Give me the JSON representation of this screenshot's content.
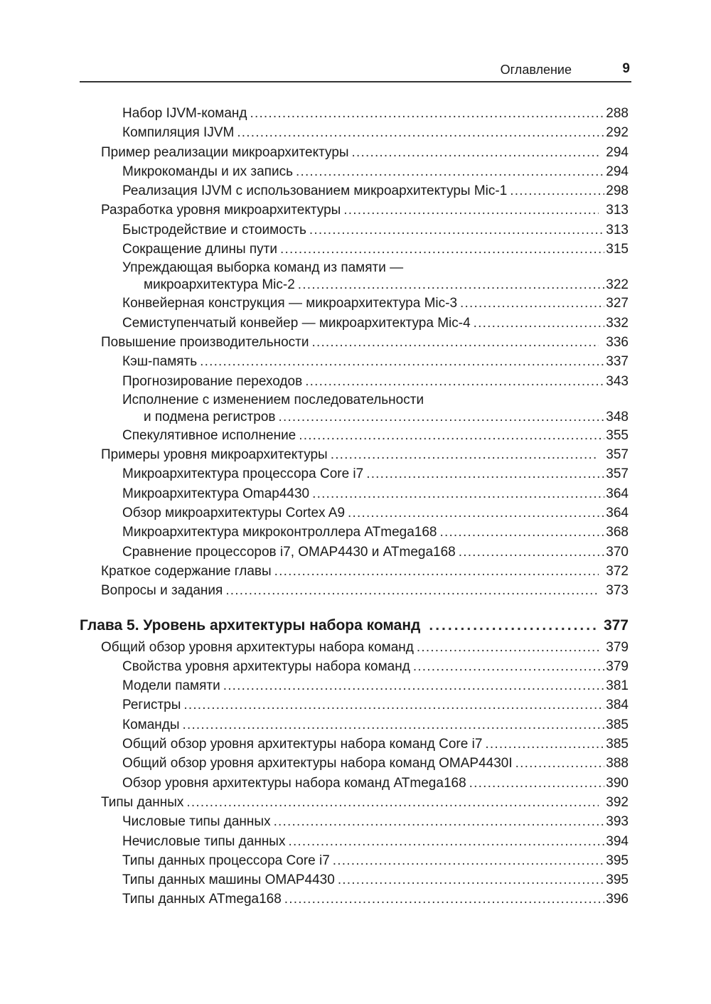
{
  "header": {
    "title": "Оглавление",
    "page_number": "9"
  },
  "entries": [
    {
      "level": 2,
      "text": "Набор IJVM-команд",
      "page": "288"
    },
    {
      "level": 2,
      "text": "Компиляция IJVM",
      "page": "292"
    },
    {
      "level": 1,
      "text": "Пример реализации микроархитектуры",
      "page": "294"
    },
    {
      "level": 2,
      "text": "Микрокоманды и их запись",
      "page": "294"
    },
    {
      "level": 2,
      "text": "Реализация IJVM с использованием микроархитектуры Mic-1",
      "page": "298"
    },
    {
      "level": 1,
      "text": "Разработка уровня микроархитектуры",
      "page": "313"
    },
    {
      "level": 2,
      "text": "Быстродействие и стоимость",
      "page": "313"
    },
    {
      "level": 2,
      "text": "Сокращение длины пути",
      "page": "315"
    },
    {
      "level": 2,
      "text": "Упреждающая выборка команд из памяти —",
      "cont": "микроархитектура Mic-2",
      "page": "322"
    },
    {
      "level": 2,
      "text": "Конвейерная конструкция — микроархитектура Mic-3",
      "page": "327"
    },
    {
      "level": 2,
      "text": "Семиступенчатый конвейер — микроархитектура Mic-4",
      "page": "332"
    },
    {
      "level": 1,
      "text": "Повышение производительности",
      "page": "336"
    },
    {
      "level": 2,
      "text": "Кэш-память",
      "page": "337"
    },
    {
      "level": 2,
      "text": "Прогнозирование переходов",
      "page": "343"
    },
    {
      "level": 2,
      "text": "Исполнение с изменением последовательности",
      "cont": "и подмена регистров",
      "page": "348"
    },
    {
      "level": 2,
      "text": "Спекулятивное исполнение",
      "page": "355"
    },
    {
      "level": 1,
      "text": "Примеры уровня микроархитектуры",
      "page": "357"
    },
    {
      "level": 2,
      "text": "Микроархитектура процессора Core i7",
      "page": "357"
    },
    {
      "level": 2,
      "text": "Микроархитектура Omap4430",
      "page": "364"
    },
    {
      "level": 2,
      "text": "Обзор микроархитектуры Cortex A9",
      "page": "364"
    },
    {
      "level": 2,
      "text": "Микроархитектура микроконтроллера ATmega168",
      "page": "368"
    },
    {
      "level": 2,
      "text": "Сравнение процессоров i7, OMAP4430 и ATmega168",
      "page": "370"
    },
    {
      "level": 1,
      "text": "Краткое содержание главы",
      "page": "372"
    },
    {
      "level": 1,
      "text": "Вопросы и задания",
      "page": "373"
    },
    {
      "level": 0,
      "text": "Глава 5. Уровень архитектуры набора команд",
      "page": "377"
    },
    {
      "level": 1,
      "text": "Общий обзор уровня архитектуры набора команд",
      "page": "379"
    },
    {
      "level": 2,
      "text": "Свойства уровня архитектуры набора команд",
      "page": "379"
    },
    {
      "level": 2,
      "text": "Модели памяти",
      "page": "381"
    },
    {
      "level": 2,
      "text": "Регистры",
      "page": "384"
    },
    {
      "level": 2,
      "text": "Команды",
      "page": "385"
    },
    {
      "level": 2,
      "text": "Общий обзор уровня архитектуры набора команд Core i7",
      "page": "385"
    },
    {
      "level": 2,
      "text": "Общий обзор уровня архитектуры набора команд OMAP4430I",
      "page": "388"
    },
    {
      "level": 2,
      "text": "Обзор уровня архитектуры набора команд ATmega168",
      "page": "390"
    },
    {
      "level": 1,
      "text": "Типы данных",
      "page": "392"
    },
    {
      "level": 2,
      "text": "Числовые типы данных",
      "page": "393"
    },
    {
      "level": 2,
      "text": "Нечисловые типы данных",
      "page": "394"
    },
    {
      "level": 2,
      "text": "Типы данных процессора Core i7",
      "page": "395"
    },
    {
      "level": 2,
      "text": "Типы данных машины OMAP4430",
      "page": "395"
    },
    {
      "level": 2,
      "text": "Типы данных ATmega168",
      "page": "396"
    }
  ]
}
